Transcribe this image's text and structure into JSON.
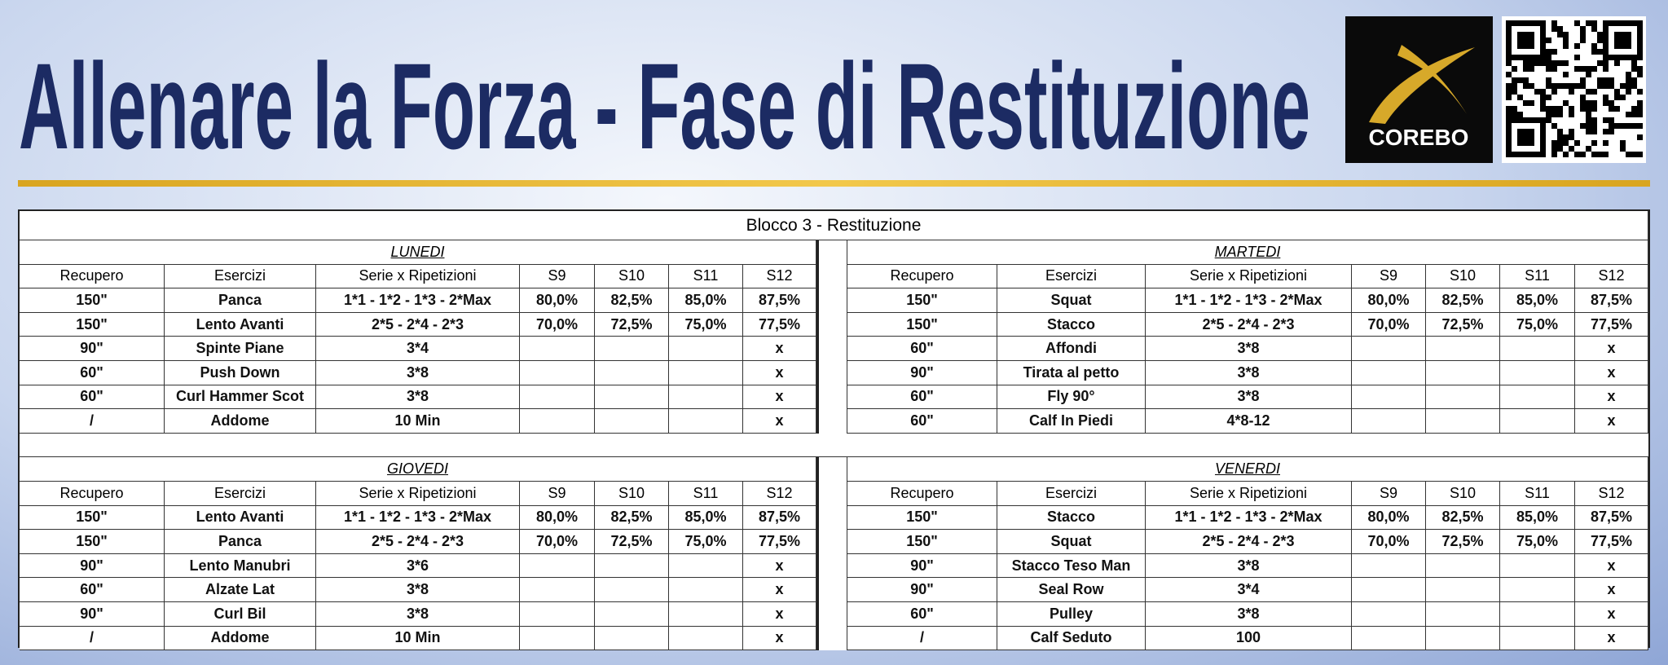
{
  "header": {
    "title": "Allenare la Forza - Fase di Restituzione",
    "logo": "COREBO"
  },
  "table": {
    "caption": "Blocco 3 - Restituzione",
    "columns": [
      "Recupero",
      "Esercizi",
      "Serie x Ripetizioni",
      "S9",
      "S10",
      "S11",
      "S12"
    ],
    "days": [
      {
        "name": "LUNEDI",
        "rows": [
          [
            "150\"",
            "Panca",
            "1*1 - 1*2 - 1*3 - 2*Max",
            "80,0%",
            "82,5%",
            "85,0%",
            "87,5%"
          ],
          [
            "150\"",
            "Lento Avanti",
            "2*5 - 2*4 - 2*3",
            "70,0%",
            "72,5%",
            "75,0%",
            "77,5%"
          ],
          [
            "90\"",
            "Spinte Piane",
            "3*4",
            null,
            null,
            null,
            "x"
          ],
          [
            "60\"",
            "Push Down",
            "3*8",
            null,
            null,
            null,
            "x"
          ],
          [
            "60\"",
            "Curl Hammer Scot",
            "3*8",
            null,
            null,
            null,
            "x"
          ],
          [
            "/",
            "Addome",
            "10 Min",
            null,
            null,
            null,
            "x"
          ]
        ]
      },
      {
        "name": "MARTEDI",
        "rows": [
          [
            "150\"",
            "Squat",
            "1*1 - 1*2 - 1*3 - 2*Max",
            "80,0%",
            "82,5%",
            "85,0%",
            "87,5%"
          ],
          [
            "150\"",
            "Stacco",
            "2*5 - 2*4 - 2*3",
            "70,0%",
            "72,5%",
            "75,0%",
            "77,5%"
          ],
          [
            "60\"",
            "Affondi",
            "3*8",
            null,
            null,
            null,
            "x"
          ],
          [
            "90\"",
            "Tirata al petto",
            "3*8",
            null,
            null,
            null,
            "x"
          ],
          [
            "60\"",
            "Fly 90°",
            "3*8",
            null,
            null,
            null,
            "x"
          ],
          [
            "60\"",
            "Calf In Piedi",
            "4*8-12",
            null,
            null,
            null,
            "x"
          ]
        ]
      },
      {
        "name": "GIOVEDI",
        "rows": [
          [
            "150\"",
            "Lento Avanti",
            "1*1 - 1*2 - 1*3 - 2*Max",
            "80,0%",
            "82,5%",
            "85,0%",
            "87,5%"
          ],
          [
            "150\"",
            "Panca",
            "2*5 - 2*4 - 2*3",
            "70,0%",
            "72,5%",
            "75,0%",
            "77,5%"
          ],
          [
            "90\"",
            "Lento Manubri",
            "3*6",
            null,
            null,
            null,
            "x"
          ],
          [
            "60\"",
            "Alzate Lat",
            "3*8",
            null,
            null,
            null,
            "x"
          ],
          [
            "90\"",
            "Curl Bil",
            "3*8",
            null,
            null,
            null,
            "x"
          ],
          [
            "/",
            "Addome",
            "10 Min",
            null,
            null,
            null,
            "x"
          ]
        ]
      },
      {
        "name": "VENERDI",
        "rows": [
          [
            "150\"",
            "Stacco",
            "1*1 - 1*2 - 1*3 - 2*Max",
            "80,0%",
            "82,5%",
            "85,0%",
            "87,5%"
          ],
          [
            "150\"",
            "Squat",
            "2*5 - 2*4 - 2*3",
            "70,0%",
            "72,5%",
            "75,0%",
            "77,5%"
          ],
          [
            "90\"",
            "Stacco Teso Man",
            "3*8",
            null,
            null,
            null,
            "x"
          ],
          [
            "90\"",
            "Seal Row",
            "3*4",
            null,
            null,
            null,
            "x"
          ],
          [
            "60\"",
            "Pulley",
            "3*8",
            null,
            null,
            null,
            "x"
          ],
          [
            "/",
            "Calf Seduto",
            "100",
            null,
            null,
            null,
            "x"
          ]
        ]
      }
    ]
  }
}
